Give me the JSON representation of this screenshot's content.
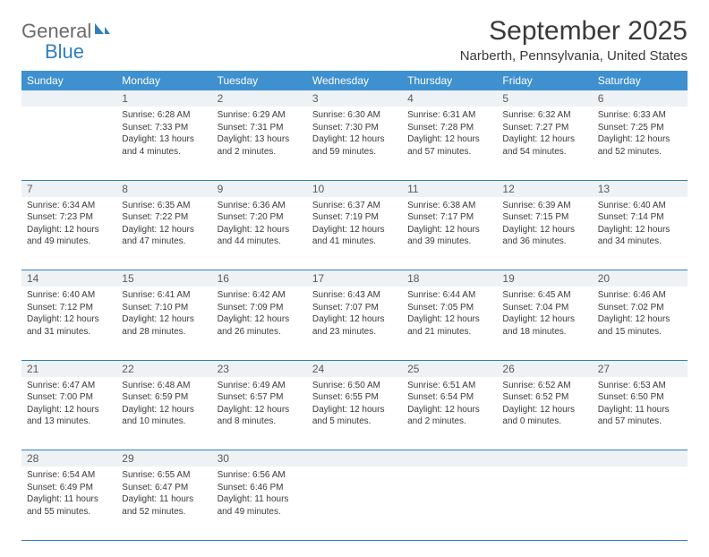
{
  "logo": {
    "text_gray": "General",
    "text_blue": "Blue",
    "icon_color": "#2f7fc1"
  },
  "header": {
    "month_title": "September 2025",
    "location": "Narberth, Pennsylvania, United States"
  },
  "colors": {
    "header_bg": "#3e90cf",
    "line": "#2f7fc1",
    "date_bg": "#eef2f5",
    "text": "#3a3a3a"
  },
  "day_names": [
    "Sunday",
    "Monday",
    "Tuesday",
    "Wednesday",
    "Thursday",
    "Friday",
    "Saturday"
  ],
  "weeks": [
    [
      null,
      {
        "n": "1",
        "sunrise": "Sunrise: 6:28 AM",
        "sunset": "Sunset: 7:33 PM",
        "day1": "Daylight: 13 hours",
        "day2": "and 4 minutes."
      },
      {
        "n": "2",
        "sunrise": "Sunrise: 6:29 AM",
        "sunset": "Sunset: 7:31 PM",
        "day1": "Daylight: 13 hours",
        "day2": "and 2 minutes."
      },
      {
        "n": "3",
        "sunrise": "Sunrise: 6:30 AM",
        "sunset": "Sunset: 7:30 PM",
        "day1": "Daylight: 12 hours",
        "day2": "and 59 minutes."
      },
      {
        "n": "4",
        "sunrise": "Sunrise: 6:31 AM",
        "sunset": "Sunset: 7:28 PM",
        "day1": "Daylight: 12 hours",
        "day2": "and 57 minutes."
      },
      {
        "n": "5",
        "sunrise": "Sunrise: 6:32 AM",
        "sunset": "Sunset: 7:27 PM",
        "day1": "Daylight: 12 hours",
        "day2": "and 54 minutes."
      },
      {
        "n": "6",
        "sunrise": "Sunrise: 6:33 AM",
        "sunset": "Sunset: 7:25 PM",
        "day1": "Daylight: 12 hours",
        "day2": "and 52 minutes."
      }
    ],
    [
      {
        "n": "7",
        "sunrise": "Sunrise: 6:34 AM",
        "sunset": "Sunset: 7:23 PM",
        "day1": "Daylight: 12 hours",
        "day2": "and 49 minutes."
      },
      {
        "n": "8",
        "sunrise": "Sunrise: 6:35 AM",
        "sunset": "Sunset: 7:22 PM",
        "day1": "Daylight: 12 hours",
        "day2": "and 47 minutes."
      },
      {
        "n": "9",
        "sunrise": "Sunrise: 6:36 AM",
        "sunset": "Sunset: 7:20 PM",
        "day1": "Daylight: 12 hours",
        "day2": "and 44 minutes."
      },
      {
        "n": "10",
        "sunrise": "Sunrise: 6:37 AM",
        "sunset": "Sunset: 7:19 PM",
        "day1": "Daylight: 12 hours",
        "day2": "and 41 minutes."
      },
      {
        "n": "11",
        "sunrise": "Sunrise: 6:38 AM",
        "sunset": "Sunset: 7:17 PM",
        "day1": "Daylight: 12 hours",
        "day2": "and 39 minutes."
      },
      {
        "n": "12",
        "sunrise": "Sunrise: 6:39 AM",
        "sunset": "Sunset: 7:15 PM",
        "day1": "Daylight: 12 hours",
        "day2": "and 36 minutes."
      },
      {
        "n": "13",
        "sunrise": "Sunrise: 6:40 AM",
        "sunset": "Sunset: 7:14 PM",
        "day1": "Daylight: 12 hours",
        "day2": "and 34 minutes."
      }
    ],
    [
      {
        "n": "14",
        "sunrise": "Sunrise: 6:40 AM",
        "sunset": "Sunset: 7:12 PM",
        "day1": "Daylight: 12 hours",
        "day2": "and 31 minutes."
      },
      {
        "n": "15",
        "sunrise": "Sunrise: 6:41 AM",
        "sunset": "Sunset: 7:10 PM",
        "day1": "Daylight: 12 hours",
        "day2": "and 28 minutes."
      },
      {
        "n": "16",
        "sunrise": "Sunrise: 6:42 AM",
        "sunset": "Sunset: 7:09 PM",
        "day1": "Daylight: 12 hours",
        "day2": "and 26 minutes."
      },
      {
        "n": "17",
        "sunrise": "Sunrise: 6:43 AM",
        "sunset": "Sunset: 7:07 PM",
        "day1": "Daylight: 12 hours",
        "day2": "and 23 minutes."
      },
      {
        "n": "18",
        "sunrise": "Sunrise: 6:44 AM",
        "sunset": "Sunset: 7:05 PM",
        "day1": "Daylight: 12 hours",
        "day2": "and 21 minutes."
      },
      {
        "n": "19",
        "sunrise": "Sunrise: 6:45 AM",
        "sunset": "Sunset: 7:04 PM",
        "day1": "Daylight: 12 hours",
        "day2": "and 18 minutes."
      },
      {
        "n": "20",
        "sunrise": "Sunrise: 6:46 AM",
        "sunset": "Sunset: 7:02 PM",
        "day1": "Daylight: 12 hours",
        "day2": "and 15 minutes."
      }
    ],
    [
      {
        "n": "21",
        "sunrise": "Sunrise: 6:47 AM",
        "sunset": "Sunset: 7:00 PM",
        "day1": "Daylight: 12 hours",
        "day2": "and 13 minutes."
      },
      {
        "n": "22",
        "sunrise": "Sunrise: 6:48 AM",
        "sunset": "Sunset: 6:59 PM",
        "day1": "Daylight: 12 hours",
        "day2": "and 10 minutes."
      },
      {
        "n": "23",
        "sunrise": "Sunrise: 6:49 AM",
        "sunset": "Sunset: 6:57 PM",
        "day1": "Daylight: 12 hours",
        "day2": "and 8 minutes."
      },
      {
        "n": "24",
        "sunrise": "Sunrise: 6:50 AM",
        "sunset": "Sunset: 6:55 PM",
        "day1": "Daylight: 12 hours",
        "day2": "and 5 minutes."
      },
      {
        "n": "25",
        "sunrise": "Sunrise: 6:51 AM",
        "sunset": "Sunset: 6:54 PM",
        "day1": "Daylight: 12 hours",
        "day2": "and 2 minutes."
      },
      {
        "n": "26",
        "sunrise": "Sunrise: 6:52 AM",
        "sunset": "Sunset: 6:52 PM",
        "day1": "Daylight: 12 hours",
        "day2": "and 0 minutes."
      },
      {
        "n": "27",
        "sunrise": "Sunrise: 6:53 AM",
        "sunset": "Sunset: 6:50 PM",
        "day1": "Daylight: 11 hours",
        "day2": "and 57 minutes."
      }
    ],
    [
      {
        "n": "28",
        "sunrise": "Sunrise: 6:54 AM",
        "sunset": "Sunset: 6:49 PM",
        "day1": "Daylight: 11 hours",
        "day2": "and 55 minutes."
      },
      {
        "n": "29",
        "sunrise": "Sunrise: 6:55 AM",
        "sunset": "Sunset: 6:47 PM",
        "day1": "Daylight: 11 hours",
        "day2": "and 52 minutes."
      },
      {
        "n": "30",
        "sunrise": "Sunrise: 6:56 AM",
        "sunset": "Sunset: 6:46 PM",
        "day1": "Daylight: 11 hours",
        "day2": "and 49 minutes."
      },
      null,
      null,
      null,
      null
    ]
  ]
}
